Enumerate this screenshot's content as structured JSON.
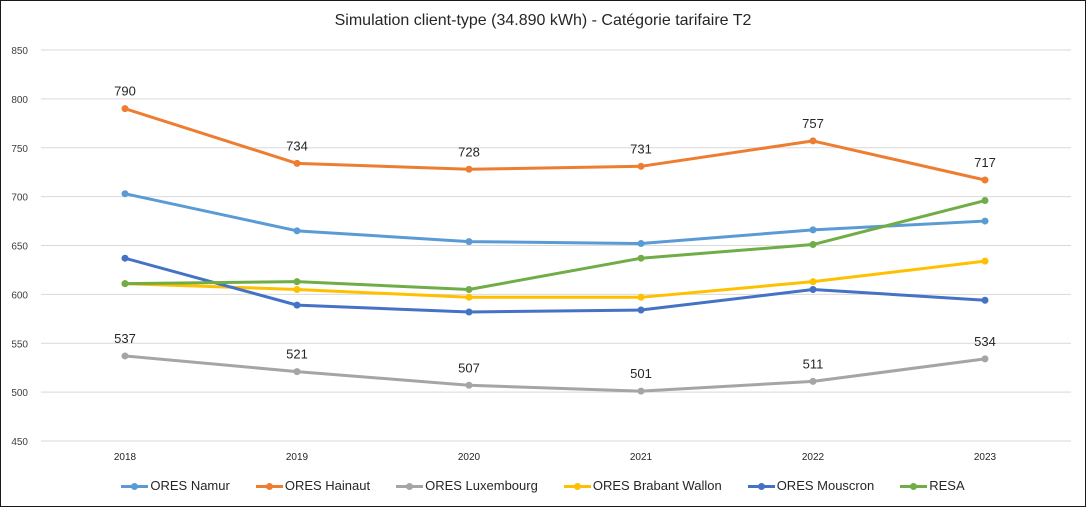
{
  "chart_data": {
    "type": "line",
    "title": "Simulation client-type (34.890 kWh) - Catégorie tarifaire T2",
    "xlabel": "",
    "ylabel": "",
    "x": [
      "2018",
      "2019",
      "2020",
      "2021",
      "2022",
      "2023"
    ],
    "ylim": [
      450,
      850
    ],
    "yticks": [
      450,
      500,
      550,
      600,
      650,
      700,
      750,
      800,
      850
    ],
    "grid": true,
    "legend_position": "bottom",
    "series": [
      {
        "name": "ORES Namur",
        "color": "#5B9BD5",
        "values": [
          703,
          665,
          654,
          652,
          666,
          675
        ],
        "show_labels": false
      },
      {
        "name": "ORES Hainaut",
        "color": "#ED7D31",
        "values": [
          790,
          734,
          728,
          731,
          757,
          717
        ],
        "show_labels": true
      },
      {
        "name": "ORES Luxembourg",
        "color": "#A5A5A5",
        "values": [
          537,
          521,
          507,
          501,
          511,
          534
        ],
        "show_labels": true
      },
      {
        "name": "ORES Brabant Wallon",
        "color": "#FFC000",
        "values": [
          611,
          605,
          597,
          597,
          613,
          634
        ],
        "show_labels": false
      },
      {
        "name": "ORES Mouscron",
        "color": "#4472C4",
        "values": [
          637,
          589,
          582,
          584,
          605,
          594
        ],
        "show_labels": false
      },
      {
        "name": "RESA",
        "color": "#70AD47",
        "values": [
          611,
          613,
          605,
          637,
          651,
          696
        ],
        "show_labels": false
      }
    ]
  }
}
